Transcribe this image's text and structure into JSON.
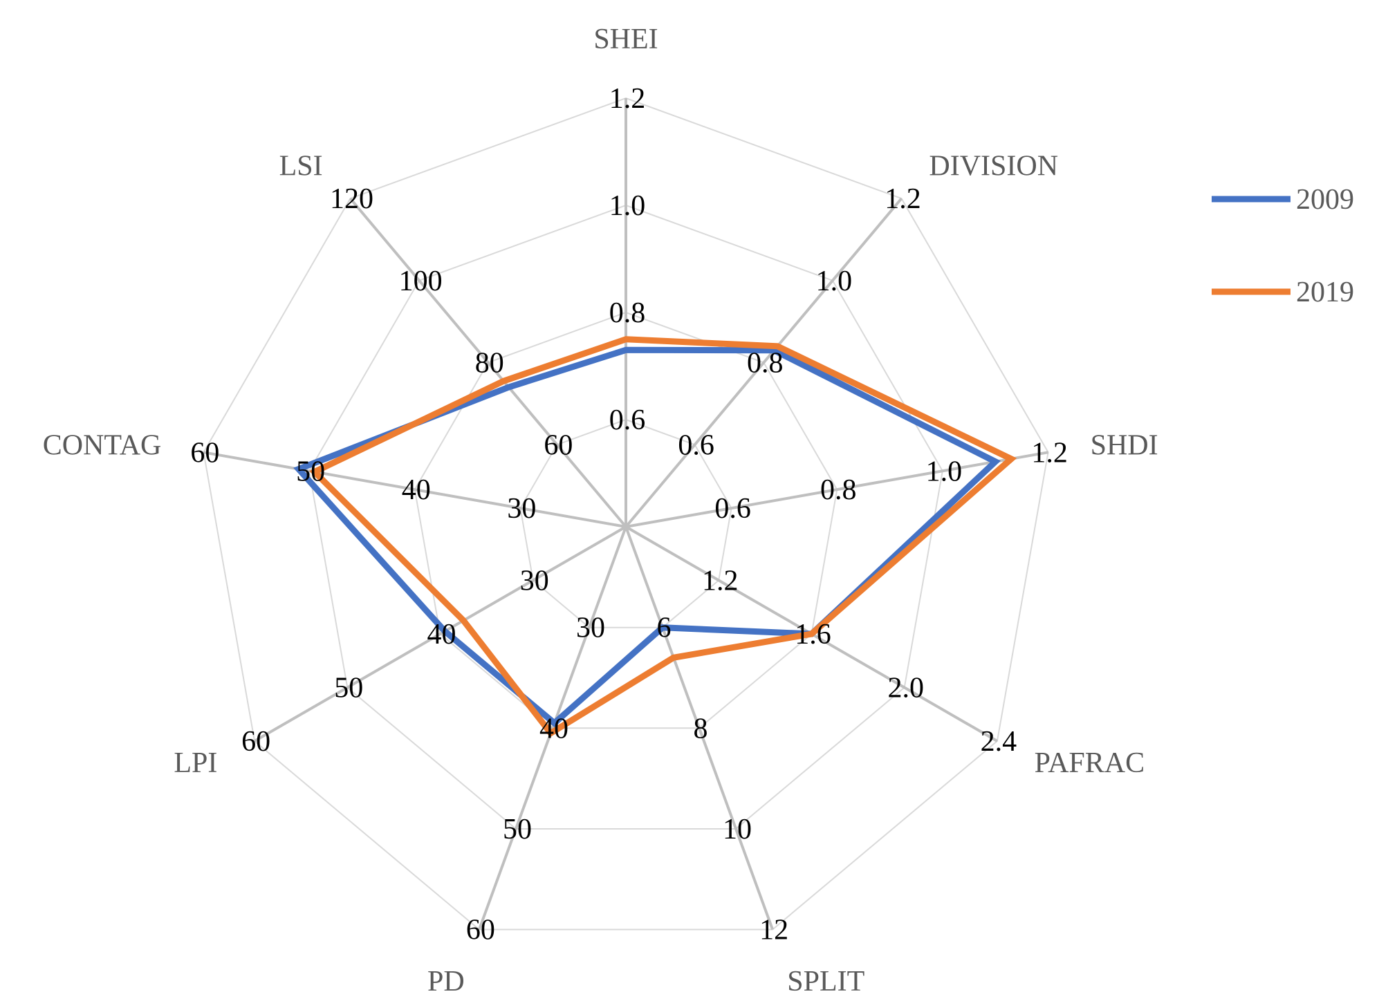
{
  "chart_data": {
    "type": "radar",
    "axes": [
      {
        "name": "SHEI",
        "ticks": [
          "0.6",
          "0.8",
          "1.0",
          "1.2"
        ],
        "min": 0.4,
        "max": 1.2
      },
      {
        "name": "DIVISION",
        "ticks": [
          "0.6",
          "0.8",
          "1.0",
          "1.2"
        ],
        "min": 0.4,
        "max": 1.2
      },
      {
        "name": "SHDI",
        "ticks": [
          "0.6",
          "0.8",
          "1.0",
          "1.2"
        ],
        "min": 0.4,
        "max": 1.2
      },
      {
        "name": "PAFRAC",
        "ticks": [
          "1.2",
          "1.6",
          "2.0",
          "2.4"
        ],
        "min": 0.8,
        "max": 2.4
      },
      {
        "name": "SPLIT",
        "ticks": [
          "6",
          "8",
          "10",
          "12"
        ],
        "min": 4,
        "max": 12
      },
      {
        "name": "PD",
        "ticks": [
          "30",
          "40",
          "50",
          "60"
        ],
        "min": 20,
        "max": 60
      },
      {
        "name": "LPI",
        "ticks": [
          "30",
          "40",
          "50",
          "60"
        ],
        "min": 20,
        "max": 60
      },
      {
        "name": "CONTAG",
        "ticks": [
          "30",
          "40",
          "50",
          "60"
        ],
        "min": 20,
        "max": 60
      },
      {
        "name": "LSI",
        "ticks": [
          "60",
          "80",
          "100",
          "120"
        ],
        "min": 40,
        "max": 120
      }
    ],
    "series": [
      {
        "name": "2009",
        "color": "#4472C4",
        "values": [
          0.73,
          0.83,
          1.1,
          1.6,
          6.0,
          39.5,
          39.5,
          51.0,
          74.0
        ]
      },
      {
        "name": "2019",
        "color": "#ED7D31",
        "values": [
          0.75,
          0.84,
          1.13,
          1.6,
          6.6,
          40.5,
          37.5,
          49.5,
          75.5
        ]
      }
    ],
    "grid": true,
    "legend": "right"
  }
}
